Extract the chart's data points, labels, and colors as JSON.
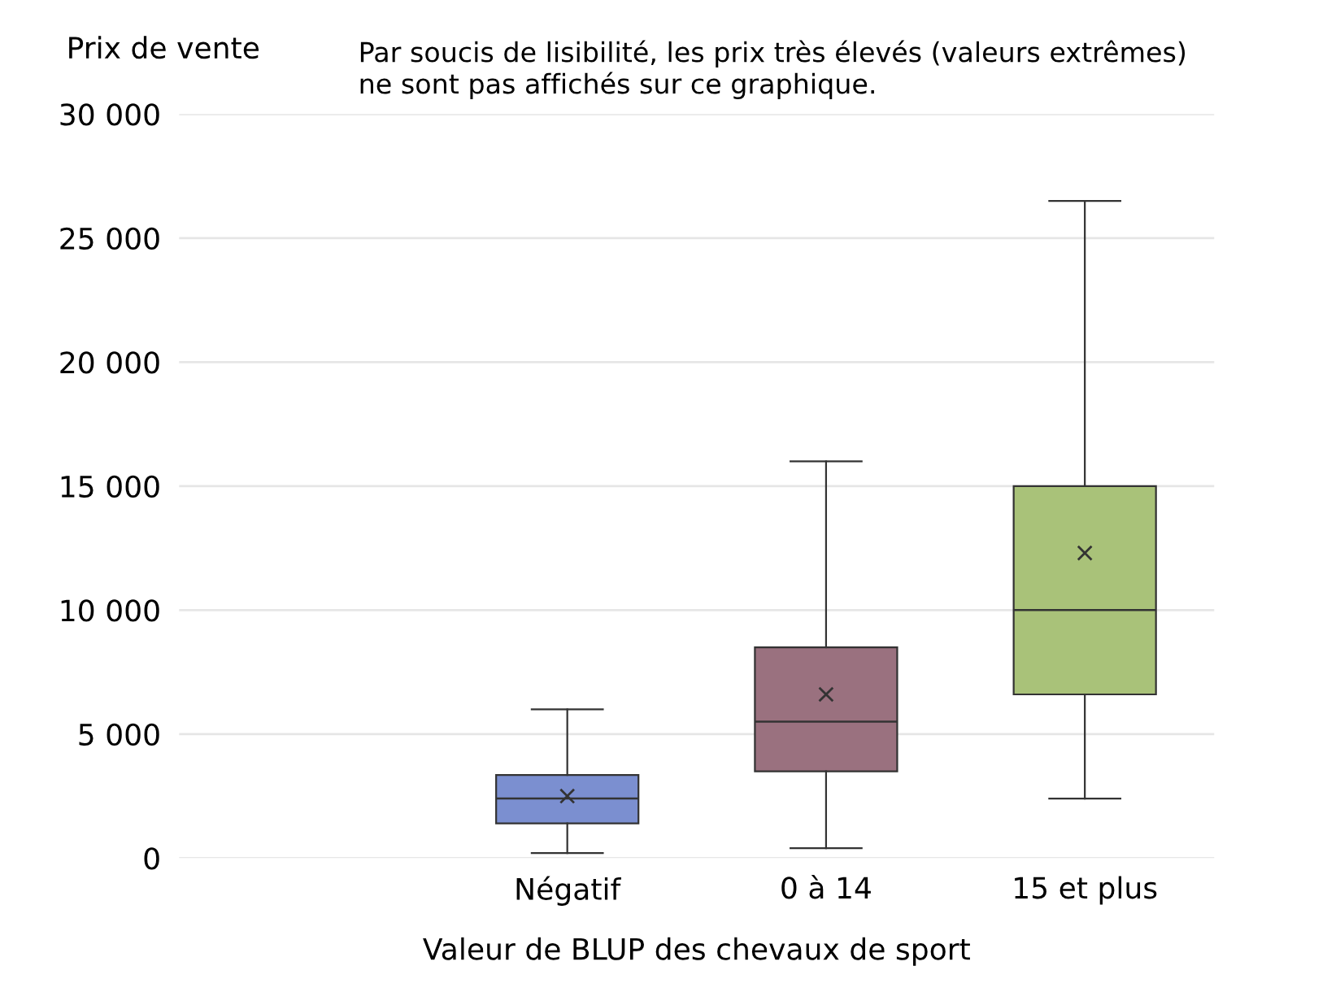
{
  "chart_data": {
    "type": "box",
    "ylabel": "Prix de vente",
    "xlabel": "Valeur de BLUP des chevaux de sport",
    "annotations": [
      "Par soucis de lisibilité, les prix très élevés (valeurs extrêmes)\nne sont pas affichés sur ce graphique."
    ],
    "categories": [
      null,
      "Négatif",
      "0 à 14",
      "15 et plus"
    ],
    "colors": [
      null,
      "#7b8fd0",
      "#9a717f",
      "#a9c279"
    ],
    "boxes": [
      null,
      {
        "low": 200,
        "q1": 1400,
        "median": 2400,
        "q3": 3350,
        "high": 6000,
        "mean": 2500
      },
      {
        "low": 400,
        "q1": 3500,
        "median": 5500,
        "q3": 8500,
        "high": 16000,
        "mean": 6600
      },
      {
        "low": 2400,
        "q1": 6600,
        "median": 10000,
        "q3": 15000,
        "high": 26500,
        "mean": 12300
      }
    ],
    "ylim": [
      0,
      30000
    ],
    "yticks": [
      {
        "value": 0,
        "label": "0"
      },
      {
        "value": 5000,
        "label": "5 000"
      },
      {
        "value": 10000,
        "label": "10 000"
      },
      {
        "value": 15000,
        "label": "15 000"
      },
      {
        "value": 20000,
        "label": "20 000"
      },
      {
        "value": 25000,
        "label": "25 000"
      },
      {
        "value": 30000,
        "label": "30 000"
      }
    ],
    "grid": "y",
    "marker": "cross"
  }
}
